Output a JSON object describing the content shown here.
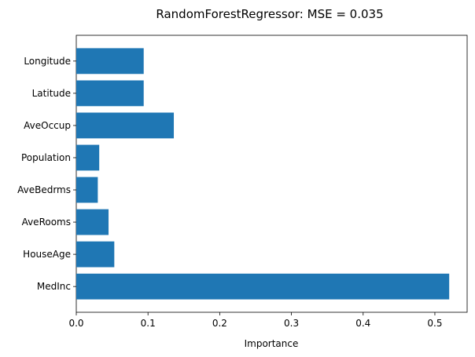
{
  "chart_data": {
    "type": "bar",
    "orientation": "horizontal",
    "title": "RandomForestRegressor: MSE = 0.035",
    "xlabel": "Importance",
    "ylabel": "",
    "categories": [
      "MedInc",
      "HouseAge",
      "AveRooms",
      "AveBedrms",
      "Population",
      "AveOccup",
      "Latitude",
      "Longitude"
    ],
    "values": [
      0.52,
      0.053,
      0.045,
      0.03,
      0.032,
      0.136,
      0.094,
      0.094
    ],
    "xlim": [
      0,
      0.545
    ],
    "xticks": [
      0.0,
      0.1,
      0.2,
      0.3,
      0.4,
      0.5
    ],
    "xtick_labels": [
      "0.0",
      "0.1",
      "0.2",
      "0.3",
      "0.4",
      "0.5"
    ],
    "grid": false,
    "bar_color": "#1f77b4"
  }
}
